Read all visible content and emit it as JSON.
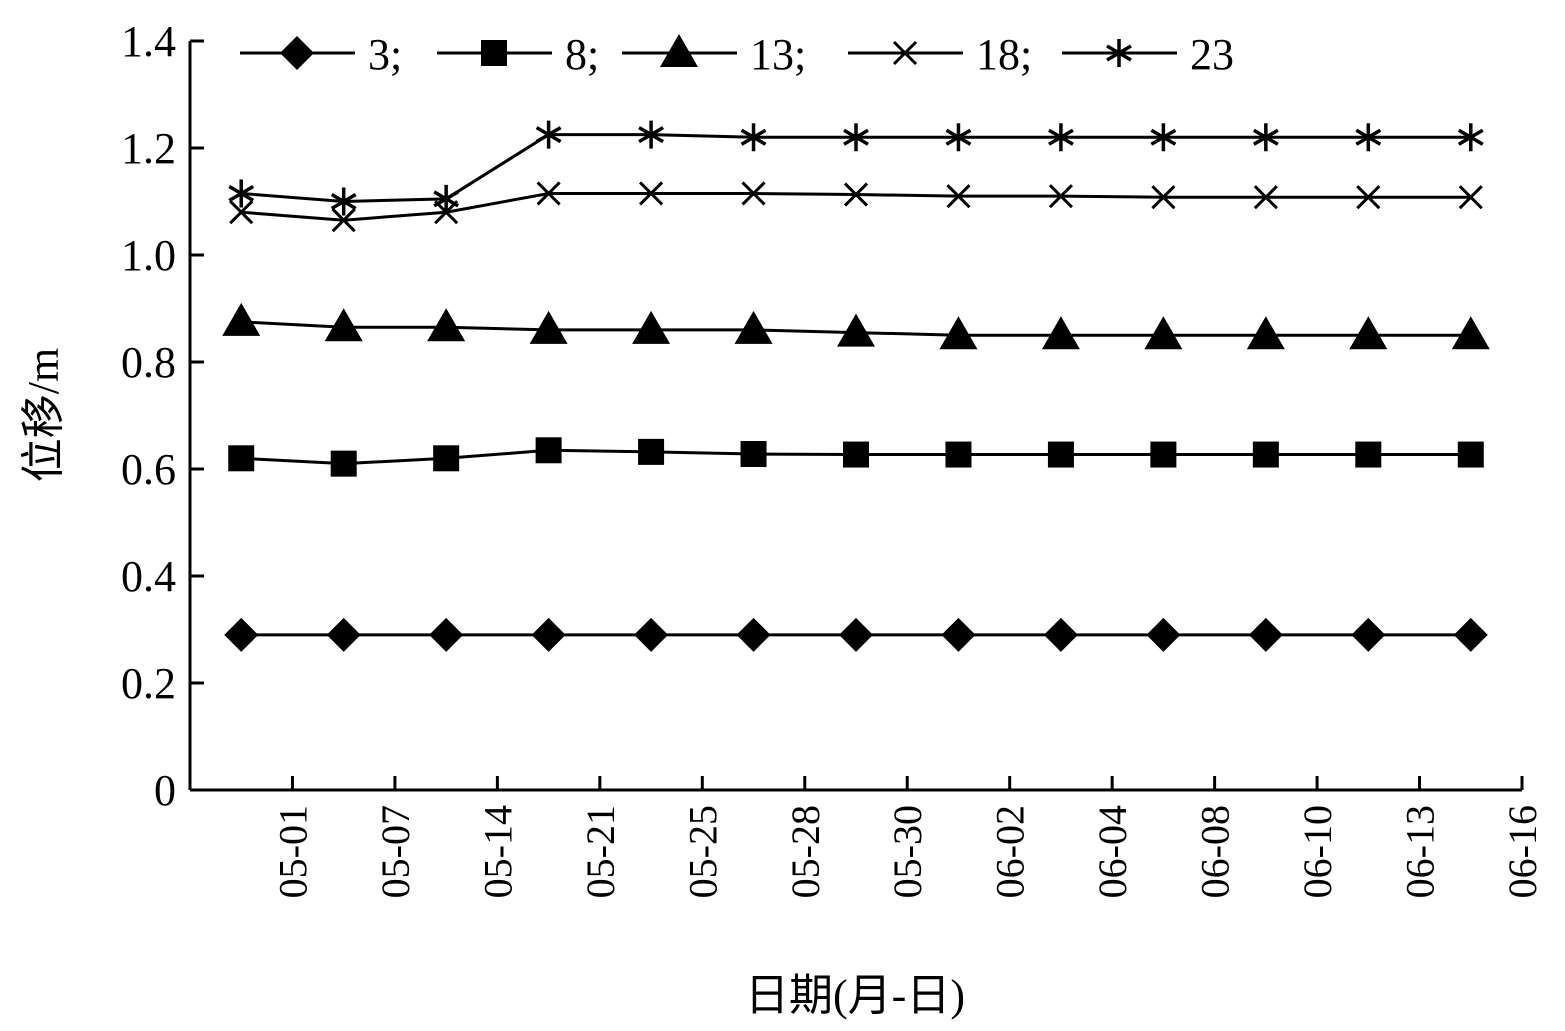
{
  "chart_data": {
    "type": "line",
    "x_label": "日期(月-日)",
    "y_label": "位移/m",
    "categories": [
      "05-01",
      "05-07",
      "05-14",
      "05-21",
      "05-25",
      "05-28",
      "05-30",
      "06-02",
      "06-04",
      "06-08",
      "06-10",
      "06-13",
      "06-16"
    ],
    "ylim": [
      0,
      1.4
    ],
    "yticks": [
      0,
      0.2,
      0.4,
      0.6,
      0.8,
      {
        "value": 1.0,
        "label": "1.0"
      },
      1.2,
      1.4
    ],
    "series": [
      {
        "name": "3;",
        "color": "#000000",
        "marker": "diamond",
        "values": [
          0.29,
          0.29,
          0.29,
          0.29,
          0.29,
          0.29,
          0.29,
          0.29,
          0.29,
          0.29,
          0.29,
          0.29,
          0.29
        ]
      },
      {
        "name": "8;",
        "color": "#000000",
        "marker": "square",
        "values": [
          0.62,
          0.61,
          0.62,
          0.635,
          0.632,
          0.628,
          0.627,
          0.627,
          0.627,
          0.627,
          0.627,
          0.627,
          0.627
        ]
      },
      {
        "name": "13;",
        "color": "#000000",
        "marker": "triangle",
        "values": [
          0.875,
          0.865,
          0.865,
          0.86,
          0.86,
          0.86,
          0.855,
          0.85,
          0.85,
          0.85,
          0.85,
          0.85,
          0.85
        ]
      },
      {
        "name": "18;",
        "color": "#000000",
        "marker": "x",
        "values": [
          1.08,
          1.065,
          1.08,
          1.115,
          1.115,
          1.115,
          1.113,
          1.11,
          1.11,
          1.108,
          1.108,
          1.108,
          1.108
        ]
      },
      {
        "name": "23",
        "color": "#000000",
        "marker": "asterisk",
        "values": [
          1.115,
          1.1,
          1.105,
          1.225,
          1.225,
          1.22,
          1.22,
          1.22,
          1.22,
          1.22,
          1.22,
          1.22,
          1.22
        ]
      }
    ]
  }
}
